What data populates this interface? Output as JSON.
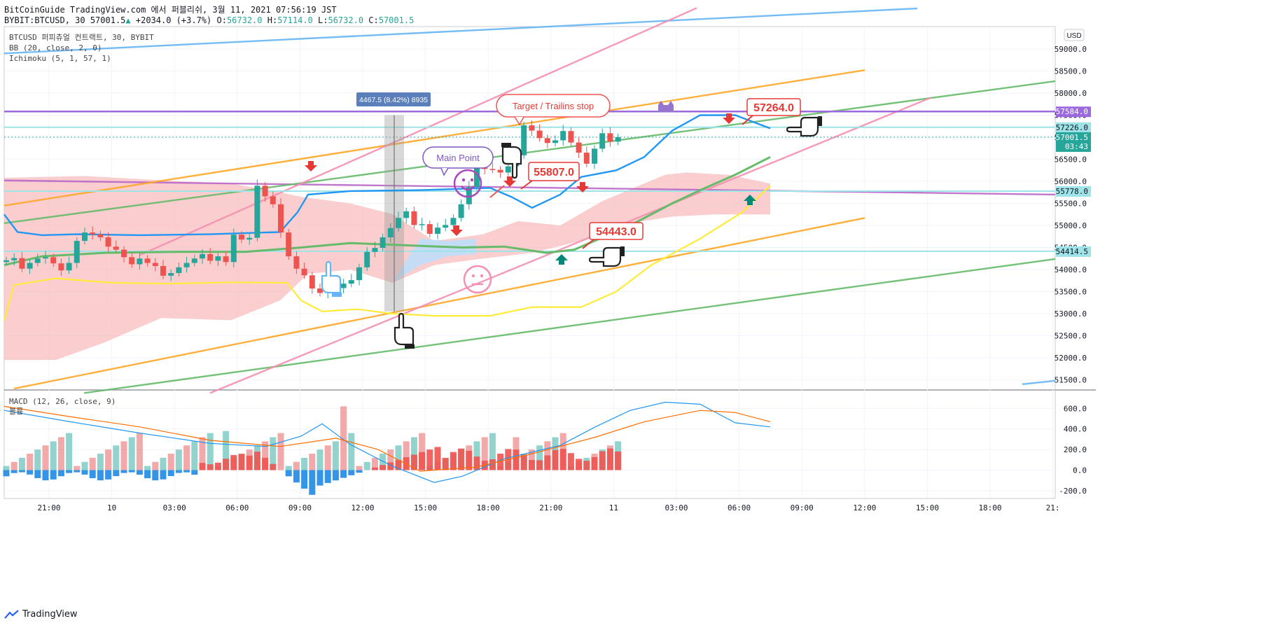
{
  "header": {
    "line1": "BitCoinGuide TradingView.com 에서 퍼블리쉬, 3월 11, 2021 07:56:19 JST",
    "symbol": "BYBIT:BTCUSD, 30",
    "last": "57001.5",
    "change": "+2034.0 (+3.7%)",
    "o_label": "O:",
    "o": "56732.0",
    "h_label": "H:",
    "h": "57114.0",
    "l_label": "L:",
    "l": "56732.0",
    "c_label": "C:",
    "c": "57001.5"
  },
  "legend": {
    "symbol_line": "BTCUSD 퍼피츄얼 컨트랙트, 30, BYBIT",
    "bb": "BB (20, close, 2, 0)",
    "ichimoku": "Ichimoku (5, 1, 57, 1)",
    "macd": "MACD (12, 26, close, 9)",
    "macd_sub": "볼륨"
  },
  "currency_button": "USD",
  "price_axis": {
    "ticks": [
      "59000.0",
      "58500.0",
      "58000.0",
      "57500.0",
      "57000.0",
      "56500.0",
      "56000.0",
      "55500.0",
      "55000.0",
      "54500.0",
      "54000.0",
      "53500.0",
      "53000.0",
      "52500.0",
      "52000.0",
      "51500.0"
    ],
    "badges": [
      {
        "value": "57584.0",
        "color": "#9c6ade"
      },
      {
        "value": "57226.0",
        "color": "#9de3e8"
      },
      {
        "value": "57001.5",
        "sub": "03:43",
        "color": "#26a69a"
      },
      {
        "value": "55778.0",
        "color": "#9de3e8"
      },
      {
        "value": "54414.5",
        "color": "#9de3e8"
      }
    ]
  },
  "macd_axis": {
    "ticks": [
      "600.0",
      "400.0",
      "200.0",
      "0.0",
      "-200.0"
    ]
  },
  "time_axis": {
    "labels": [
      "21:00",
      "10",
      "03:00",
      "06:00",
      "09:00",
      "12:00",
      "15:00",
      "18:00",
      "21:00",
      "11",
      "03:00",
      "06:00",
      "09:00",
      "12:00",
      "15:00",
      "18:00",
      "21:"
    ]
  },
  "annotations": {
    "measure": "4467.5 (8.42%) 8935",
    "target": "Target / Trailins stop",
    "main_point": "Main Point",
    "price1": "57264.0",
    "price2": "55807.0",
    "price3": "54443.0"
  },
  "footer": {
    "brand": "TradingView"
  },
  "colors": {
    "up": "#26a69a",
    "down": "#ef5350",
    "bb": "#2196f3",
    "kijun": "#66bb6a",
    "senkou": "#ffeb3b",
    "cloud_bear": "#f8bdbd",
    "cloud_bull": "#bbdefb",
    "macd": "#2196f3",
    "signal": "#ff6d00"
  },
  "chart_data": [
    {
      "type": "candlestick",
      "title": "BTCUSD 퍼피츄얼 컨트랙트, 30, BYBIT",
      "ylim": [
        51200,
        59400
      ],
      "x_labels": [
        "21:00",
        "10",
        "03:00",
        "06:00",
        "09:00",
        "12:00",
        "15:00",
        "18:00",
        "21:00",
        "11",
        "03:00",
        "06:00"
      ],
      "close": [
        54210,
        54260,
        54020,
        54150,
        54250,
        54280,
        54140,
        53980,
        54150,
        54650,
        54840,
        54800,
        54730,
        54520,
        54450,
        54280,
        54120,
        54250,
        54150,
        54080,
        53860,
        53920,
        54050,
        54150,
        54250,
        54350,
        54200,
        54300,
        54170,
        54790,
        54680,
        54720,
        55900,
        55660,
        55480,
        54840,
        54300,
        54020,
        53870,
        53570,
        53470,
        53520,
        53580,
        53680,
        53760,
        54050,
        54400,
        54490,
        54730,
        54940,
        55170,
        55320,
        55010,
        55030,
        54810,
        54950,
        55010,
        55170,
        55480,
        55870,
        56480,
        56280,
        56260,
        56200,
        56340,
        56590,
        57270,
        57150,
        56980,
        56870,
        56930,
        57140,
        56880,
        56650,
        56400,
        56740,
        57090,
        56900,
        57001.5
      ],
      "markers": {
        "sell_arrows": 5,
        "buy_arrows": 2
      }
    },
    {
      "type": "bar",
      "title": "MACD (12, 26, close, 9)",
      "ylim": [
        -270,
        700
      ],
      "series": [
        {
          "name": "MACD",
          "kind": "line"
        },
        {
          "name": "Signal",
          "kind": "line"
        },
        {
          "name": "볼륨",
          "kind": "bar"
        }
      ]
    }
  ]
}
